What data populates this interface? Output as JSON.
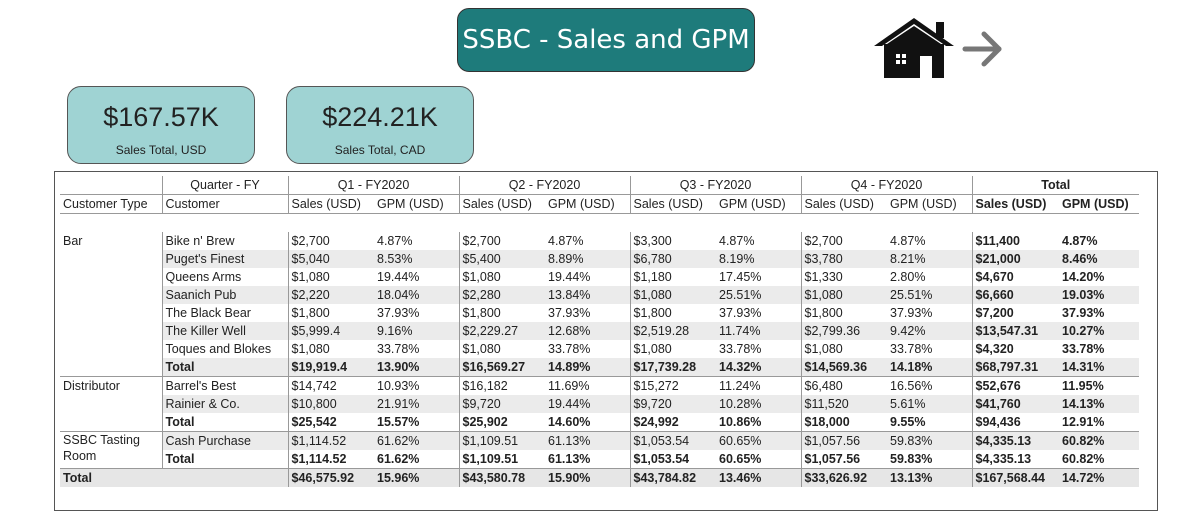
{
  "header": {
    "title": "SSBC - Sales and GPM"
  },
  "icons": {
    "home": "home-icon",
    "forward": "arrow-right-icon"
  },
  "kpis": [
    {
      "value": "$167.57K",
      "label": "Sales Total, USD"
    },
    {
      "value": "$224.21K",
      "label": "Sales Total, CAD"
    }
  ],
  "matrix": {
    "quarter_label": "Quarter - FY",
    "quarters": [
      "Q1 - FY2020",
      "Q2 - FY2020",
      "Q3 - FY2020",
      "Q4 - FY2020",
      "Total"
    ],
    "col_type": "Customer Type",
    "col_customer": "Customer",
    "sales_label": "Sales (USD)",
    "gpm_label": "GPM (USD)",
    "rows": [
      {
        "type": "Bar",
        "customer": "Bike n' Brew",
        "values": [
          "$2,700",
          "4.87%",
          "$2,700",
          "4.87%",
          "$3,300",
          "4.87%",
          "$2,700",
          "4.87%",
          "$11,400",
          "4.87%"
        ]
      },
      {
        "type": "",
        "customer": "Puget's Finest",
        "values": [
          "$5,040",
          "8.53%",
          "$5,400",
          "8.89%",
          "$6,780",
          "8.19%",
          "$3,780",
          "8.21%",
          "$21,000",
          "8.46%"
        ]
      },
      {
        "type": "",
        "customer": "Queens Arms",
        "values": [
          "$1,080",
          "19.44%",
          "$1,080",
          "19.44%",
          "$1,180",
          "17.45%",
          "$1,330",
          "2.80%",
          "$4,670",
          "14.20%"
        ]
      },
      {
        "type": "",
        "customer": "Saanich Pub",
        "values": [
          "$2,220",
          "18.04%",
          "$2,280",
          "13.84%",
          "$1,080",
          "25.51%",
          "$1,080",
          "25.51%",
          "$6,660",
          "19.03%"
        ]
      },
      {
        "type": "",
        "customer": "The Black Bear",
        "values": [
          "$1,800",
          "37.93%",
          "$1,800",
          "37.93%",
          "$1,800",
          "37.93%",
          "$1,800",
          "37.93%",
          "$7,200",
          "37.93%"
        ]
      },
      {
        "type": "",
        "customer": "The Killer Well",
        "values": [
          "$5,999.4",
          "9.16%",
          "$2,229.27",
          "12.68%",
          "$2,519.28",
          "11.74%",
          "$2,799.36",
          "9.42%",
          "$13,547.31",
          "10.27%"
        ]
      },
      {
        "type": "",
        "customer": "Toques and Blokes",
        "values": [
          "$1,080",
          "33.78%",
          "$1,080",
          "33.78%",
          "$1,080",
          "33.78%",
          "$1,080",
          "33.78%",
          "$4,320",
          "33.78%"
        ]
      },
      {
        "type": "",
        "customer": "Total",
        "values": [
          "$19,919.4",
          "13.90%",
          "$16,569.27",
          "14.89%",
          "$17,739.28",
          "14.32%",
          "$14,569.36",
          "14.18%",
          "$68,797.31",
          "14.31%"
        ]
      },
      {
        "type": "Distributor",
        "customer": "Barrel's Best",
        "values": [
          "$14,742",
          "10.93%",
          "$16,182",
          "11.69%",
          "$15,272",
          "11.24%",
          "$6,480",
          "16.56%",
          "$52,676",
          "11.95%"
        ]
      },
      {
        "type": "",
        "customer": "Rainier & Co.",
        "values": [
          "$10,800",
          "21.91%",
          "$9,720",
          "19.44%",
          "$9,720",
          "10.28%",
          "$11,520",
          "5.61%",
          "$41,760",
          "14.13%"
        ]
      },
      {
        "type": "",
        "customer": "Total",
        "values": [
          "$25,542",
          "15.57%",
          "$25,902",
          "14.60%",
          "$24,992",
          "10.86%",
          "$18,000",
          "9.55%",
          "$94,436",
          "12.91%"
        ]
      },
      {
        "type": "SSBC Tasting",
        "customer": "Cash Purchase",
        "values": [
          "$1,114.52",
          "61.62%",
          "$1,109.51",
          "61.13%",
          "$1,053.54",
          "60.65%",
          "$1,057.56",
          "59.83%",
          "$4,335.13",
          "60.82%"
        ]
      },
      {
        "type": "Room",
        "customer": "Total",
        "values": [
          "$1,114.52",
          "61.62%",
          "$1,109.51",
          "61.13%",
          "$1,053.54",
          "60.65%",
          "$1,057.56",
          "59.83%",
          "$4,335.13",
          "60.82%"
        ]
      }
    ],
    "grand_total": {
      "label": "Total",
      "values": [
        "$46,575.92",
        "15.96%",
        "$43,580.78",
        "15.90%",
        "$43,784.82",
        "13.46%",
        "$33,626.92",
        "13.13%",
        "$167,568.44",
        "14.72%"
      ]
    }
  }
}
